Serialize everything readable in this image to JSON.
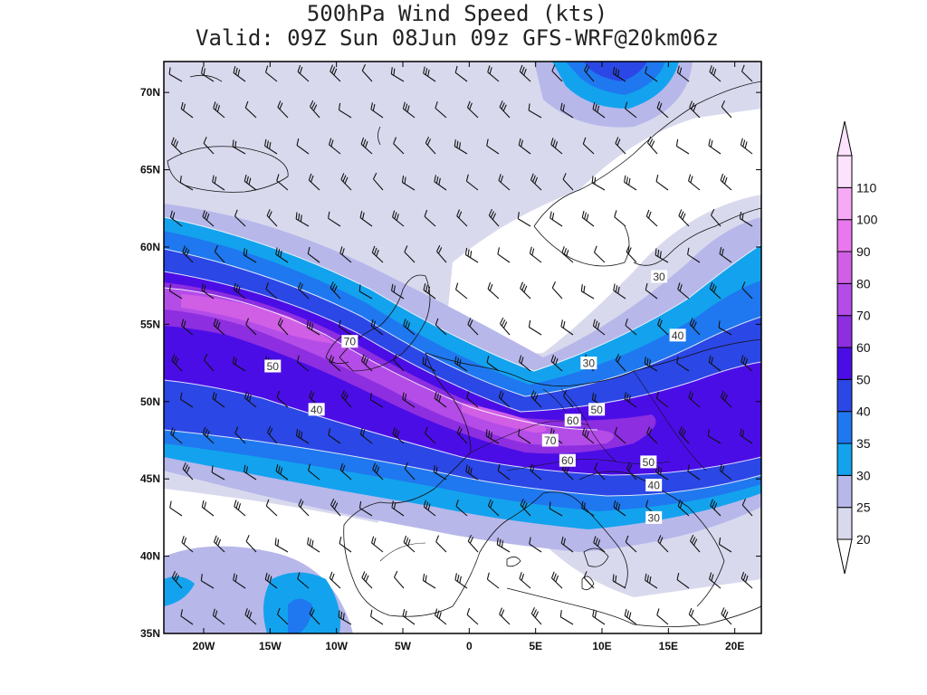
{
  "title": {
    "line1": "500hPa Wind Speed (kts)",
    "line2": "Valid: 09Z Sun 08Jun 09z GFS-WRF@20km06z"
  },
  "map": {
    "lon_range": [
      -23,
      22
    ],
    "lat_range": [
      35,
      72
    ],
    "lon_ticks": [
      {
        "value": -20,
        "label": "20W"
      },
      {
        "value": -15,
        "label": "15W"
      },
      {
        "value": -10,
        "label": "10W"
      },
      {
        "value": -5,
        "label": "5W"
      },
      {
        "value": 0,
        "label": "0"
      },
      {
        "value": 5,
        "label": "5E"
      },
      {
        "value": 10,
        "label": "10E"
      },
      {
        "value": 15,
        "label": "15E"
      },
      {
        "value": 20,
        "label": "20E"
      }
    ],
    "lat_ticks": [
      {
        "value": 70,
        "label": "70N"
      },
      {
        "value": 65,
        "label": "65N"
      },
      {
        "value": 60,
        "label": "60N"
      },
      {
        "value": 55,
        "label": "55N"
      },
      {
        "value": 50,
        "label": "50N"
      },
      {
        "value": 45,
        "label": "45N"
      },
      {
        "value": 40,
        "label": "40N"
      },
      {
        "value": 35,
        "label": "35N"
      }
    ],
    "contour_labels": [
      {
        "text": "70",
        "lon": -9,
        "lat": 53.9
      },
      {
        "text": "50",
        "lon": -14.8,
        "lat": 52.3
      },
      {
        "text": "40",
        "lon": -11.5,
        "lat": 49.5
      },
      {
        "text": "30",
        "lon": 14.3,
        "lat": 58.1
      },
      {
        "text": "40",
        "lon": 15.7,
        "lat": 54.3
      },
      {
        "text": "30",
        "lon": 9,
        "lat": 52.5
      },
      {
        "text": "60",
        "lon": 7.8,
        "lat": 48.8
      },
      {
        "text": "50",
        "lon": 9.6,
        "lat": 49.5
      },
      {
        "text": "70",
        "lon": 6.1,
        "lat": 47.5
      },
      {
        "text": "60",
        "lon": 7.4,
        "lat": 46.2
      },
      {
        "text": "50",
        "lon": 13.5,
        "lat": 46.1
      },
      {
        "text": "40",
        "lon": 13.9,
        "lat": 44.6
      },
      {
        "text": "30",
        "lon": 13.9,
        "lat": 42.5
      }
    ]
  },
  "colorbar": {
    "levels": [
      20,
      25,
      30,
      35,
      40,
      50,
      60,
      70,
      80,
      90,
      100,
      110
    ],
    "level_labels": [
      "20",
      "25",
      "30",
      "35",
      "40",
      "50",
      "60",
      "70",
      "80",
      "90",
      "100",
      "110"
    ],
    "colors": [
      "#d9d9ee",
      "#b7b7ea",
      "#13a3ee",
      "#1f78ef",
      "#2b47e6",
      "#4b0de6",
      "#8d2ee0",
      "#b44ce8",
      "#d05fe6",
      "#e977ee",
      "#f6aaf6",
      "#fde2fd"
    ]
  }
}
